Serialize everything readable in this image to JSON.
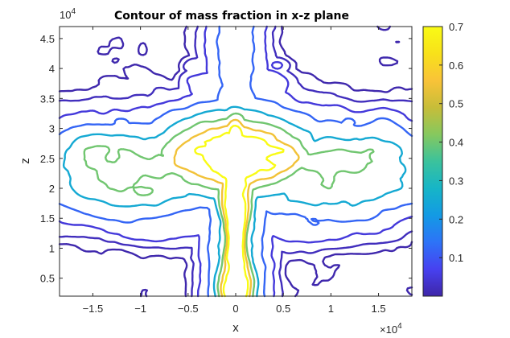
{
  "chart_data": {
    "type": "contour",
    "title": "Contour of mass fraction in x-z plane",
    "xlabel": "x",
    "ylabel": "z",
    "x_multiplier": "10",
    "x_multiplier_exp": "4",
    "y_multiplier": "10",
    "y_multiplier_exp": "4",
    "xlim": [
      -1.85,
      1.85
    ],
    "ylim": [
      0.2,
      4.7
    ],
    "x_ticks": [
      -1.5,
      -1,
      -0.5,
      0,
      0.5,
      1,
      1.5
    ],
    "x_tick_labels": [
      "−1.5",
      "−1",
      "−0.5",
      "0",
      "0.5",
      "1",
      "1.5"
    ],
    "y_ticks": [
      0.5,
      1,
      1.5,
      2,
      2.5,
      3,
      3.5,
      4,
      4.5
    ],
    "y_tick_labels": [
      "0.5",
      "1",
      "1.5",
      "2",
      "2.5",
      "3",
      "3.5",
      "4",
      "4.5"
    ],
    "colorbar": {
      "clim": [
        0.0,
        0.7
      ],
      "ticks": [
        0.1,
        0.2,
        0.3,
        0.4,
        0.5,
        0.6,
        0.7
      ],
      "tick_labels": [
        "0.1",
        "0.2",
        "0.3",
        "0.4",
        "0.5",
        "0.6",
        "0.7"
      ],
      "colormap": [
        "#3e26a8",
        "#4741f0",
        "#2d73f7",
        "#139ae4",
        "#16b5c7",
        "#3bc29c",
        "#86c85e",
        "#c7bd39",
        "#f9c338",
        "#f8e11a",
        "#f9fb15"
      ]
    },
    "levels": [
      0.005,
      0.02,
      0.05,
      0.12,
      0.25,
      0.4,
      0.55,
      0.7
    ],
    "grid": false,
    "series": []
  }
}
